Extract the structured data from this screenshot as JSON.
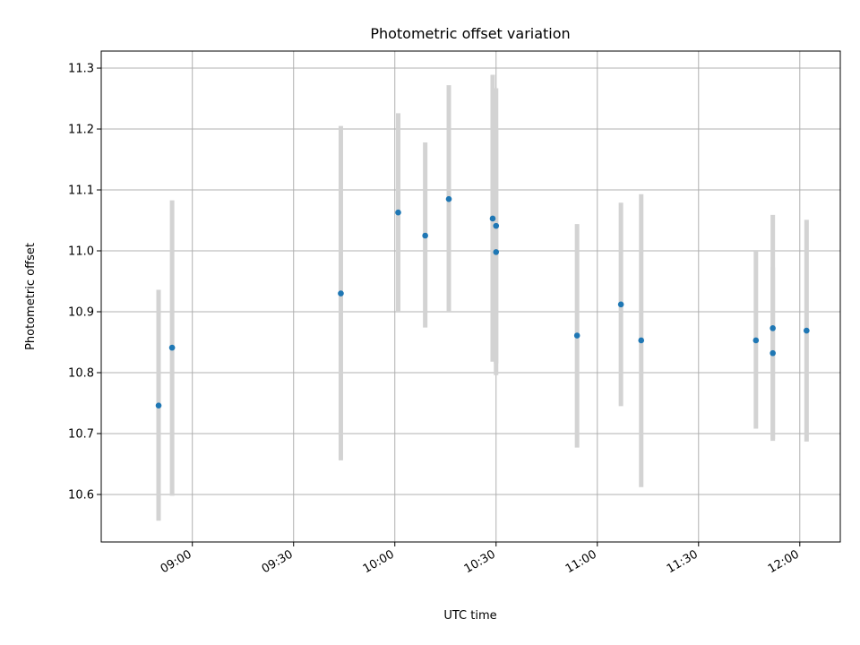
{
  "chart_data": {
    "type": "scatter",
    "title": "Photometric offset variation",
    "xlabel": "UTC time",
    "ylabel": "Photometric offset",
    "grid": true,
    "xlim": [
      "08:33",
      "12:12"
    ],
    "ylim": [
      10.522,
      11.328
    ],
    "x_ticks": [
      "09:00",
      "09:30",
      "10:00",
      "10:30",
      "11:00",
      "11:30",
      "12:00"
    ],
    "y_ticks": [
      "10.6",
      "10.7",
      "10.8",
      "10.9",
      "11.0",
      "11.1",
      "11.2",
      "11.3"
    ],
    "colors": {
      "point": "#1f77b4",
      "errorbar": "#d3d3d3",
      "grid": "#b0b0b0"
    },
    "series": [
      {
        "points": [
          {
            "x": "08:50",
            "y": 10.746,
            "low": 10.557,
            "high": 10.936
          },
          {
            "x": "08:54",
            "y": 10.841,
            "low": 10.598,
            "high": 11.083
          },
          {
            "x": "09:44",
            "y": 10.93,
            "low": 10.656,
            "high": 11.205
          },
          {
            "x": "10:01",
            "y": 11.063,
            "low": 10.9,
            "high": 11.226
          },
          {
            "x": "10:09",
            "y": 11.025,
            "low": 10.874,
            "high": 11.178
          },
          {
            "x": "10:16",
            "y": 11.085,
            "low": 10.9,
            "high": 11.272
          },
          {
            "x": "10:29",
            "y": 11.053,
            "low": 10.818,
            "high": 11.289
          },
          {
            "x": "10:30",
            "y": 10.998,
            "low": 10.796,
            "high": 11.2
          },
          {
            "x": "10:30",
            "y": 11.041,
            "low": 10.815,
            "high": 11.267
          },
          {
            "x": "10:54",
            "y": 10.861,
            "low": 10.677,
            "high": 11.044
          },
          {
            "x": "11:07",
            "y": 10.912,
            "low": 10.745,
            "high": 11.079
          },
          {
            "x": "11:13",
            "y": 10.853,
            "low": 10.612,
            "high": 11.093
          },
          {
            "x": "11:47",
            "y": 10.853,
            "low": 10.708,
            "high": 11.0
          },
          {
            "x": "11:52",
            "y": 10.873,
            "low": 10.688,
            "high": 11.059
          },
          {
            "x": "11:52",
            "y": 10.832,
            "low": 10.691,
            "high": 10.973
          },
          {
            "x": "12:02",
            "y": 10.869,
            "low": 10.687,
            "high": 11.051
          }
        ]
      }
    ]
  }
}
